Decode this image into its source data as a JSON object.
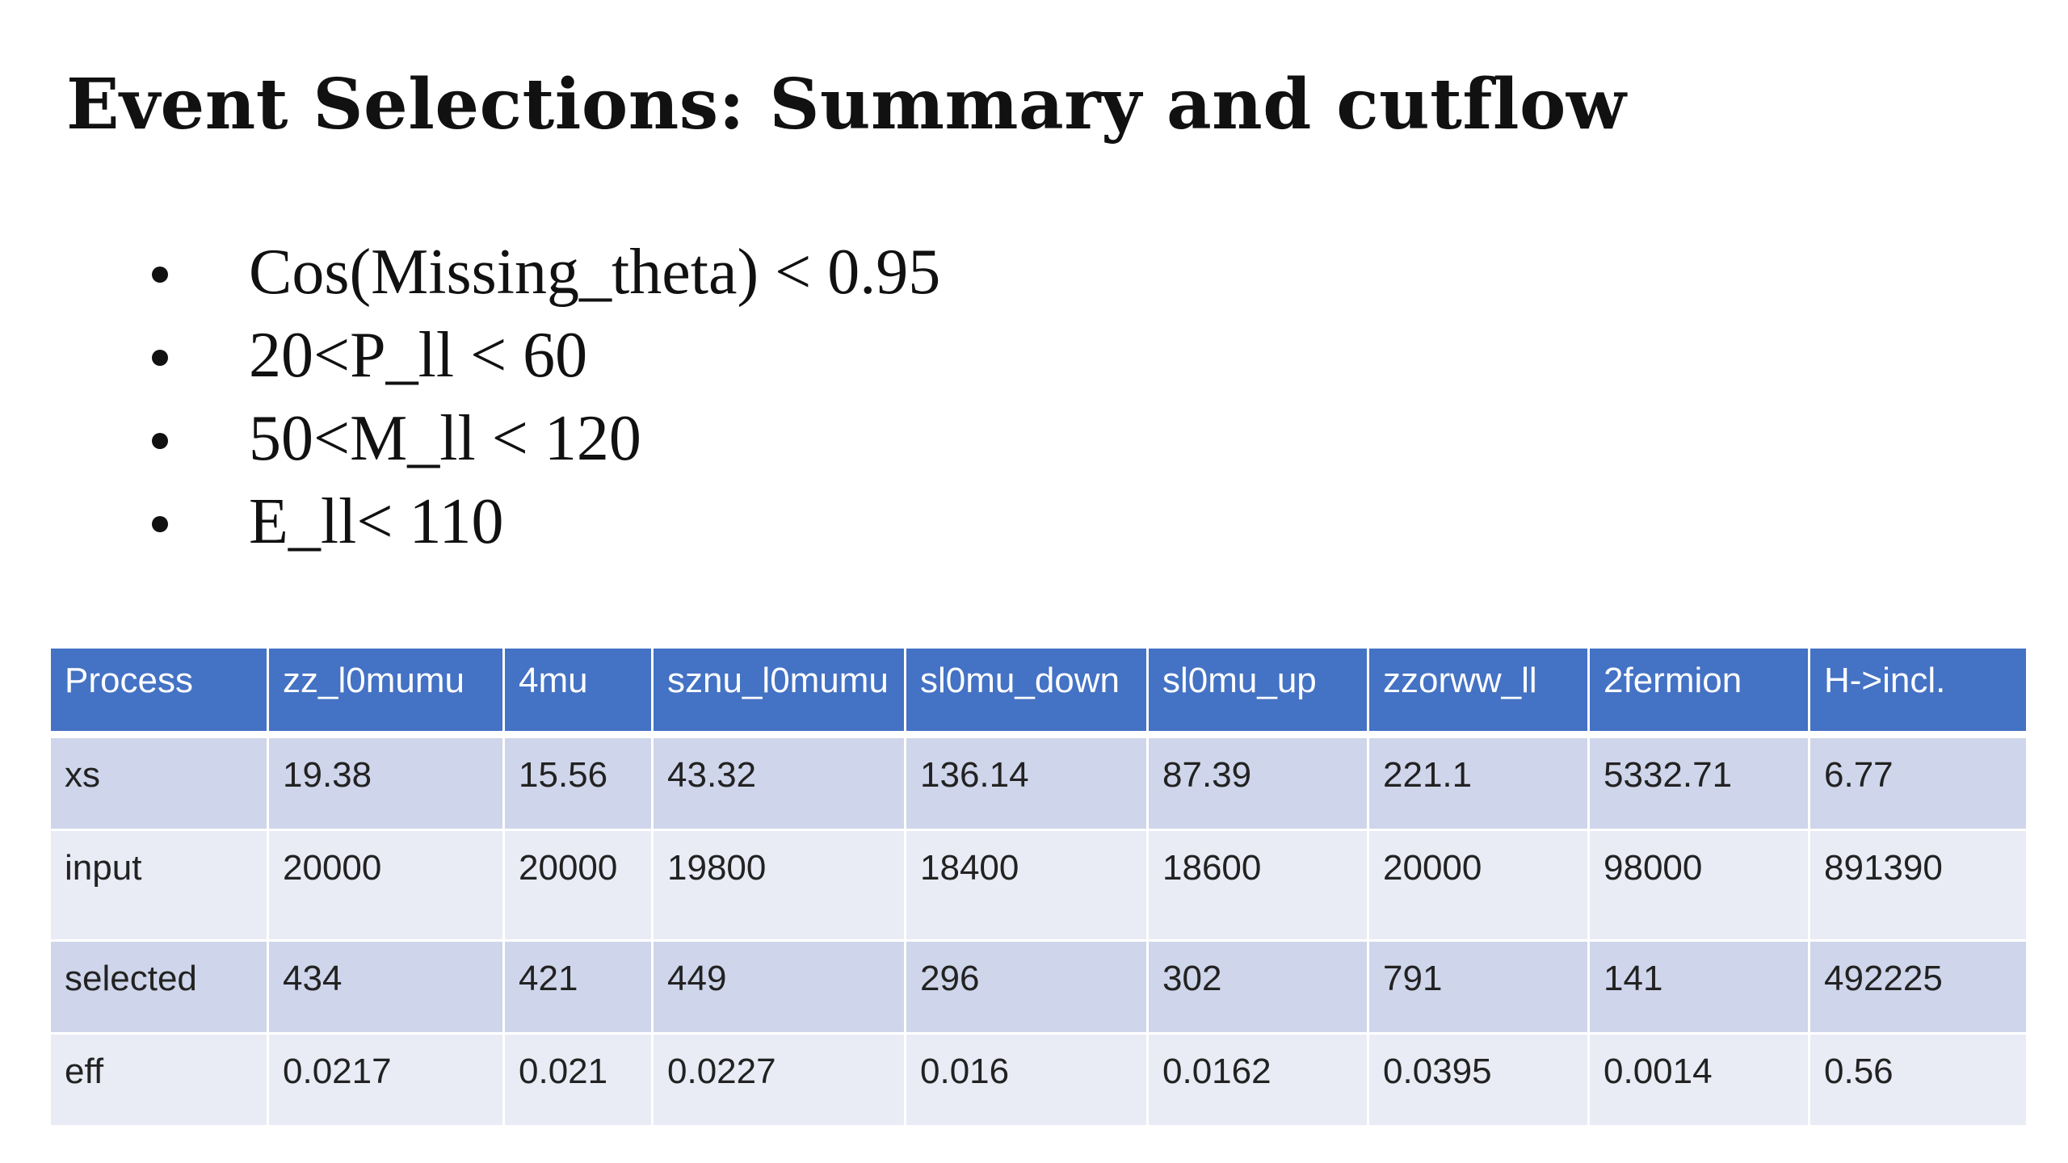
{
  "slide": {
    "title": "Event Selections: Summary and cutflow",
    "bullets": [
      "Cos(Missing_theta) < 0.95",
      "20<P_ll < 60",
      "50<M_ll < 120",
      "E_ll< 110"
    ]
  },
  "table": {
    "headers": [
      "Process",
      "zz_l0mumu",
      "4mu",
      "sznu_l0mumu",
      "sl0mu_down",
      "sl0mu_up",
      "zzorww_ll",
      "2fermion",
      "H->incl."
    ],
    "rows": [
      [
        "xs",
        "19.38",
        "15.56",
        "43.32",
        "136.14",
        "87.39",
        "221.1",
        "5332.71",
        "6.77"
      ],
      [
        "input",
        "20000",
        "20000",
        "19800",
        "18400",
        "18600",
        "20000",
        "98000",
        "891390"
      ],
      [
        "selected",
        "434",
        "421",
        "449",
        "296",
        "302",
        "791",
        "141",
        "492225"
      ],
      [
        "eff",
        "0.0217",
        "0.021",
        "0.0227",
        "0.016",
        "0.0162",
        "0.0395",
        "0.0014",
        "0.56"
      ]
    ]
  },
  "colors": {
    "header_bg": "#4472c4",
    "row_dark": "#cfd5ea",
    "row_light": "#e9ebf5"
  }
}
